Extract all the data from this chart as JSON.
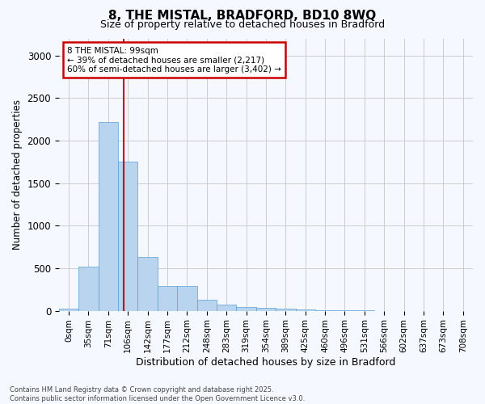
{
  "title_line1": "8, THE MISTAL, BRADFORD, BD10 8WQ",
  "title_line2": "Size of property relative to detached houses in Bradford",
  "xlabel": "Distribution of detached houses by size in Bradford",
  "ylabel": "Number of detached properties",
  "bar_color": "#b8d4ee",
  "bar_edge_color": "#5a9fd4",
  "annotation_box_color": "#cc0000",
  "annotation_line1": "8 THE MISTAL: 99sqm",
  "annotation_line2": "← 39% of detached houses are smaller (2,217)",
  "annotation_line3": "60% of semi-detached houses are larger (3,402) →",
  "vline_color": "#cc0000",
  "vline_x_index": 2.857,
  "categories": [
    "0sqm",
    "35sqm",
    "71sqm",
    "106sqm",
    "142sqm",
    "177sqm",
    "212sqm",
    "248sqm",
    "283sqm",
    "319sqm",
    "354sqm",
    "389sqm",
    "425sqm",
    "460sqm",
    "496sqm",
    "531sqm",
    "566sqm",
    "602sqm",
    "637sqm",
    "673sqm",
    "708sqm"
  ],
  "bin_edges": [
    0,
    35,
    71,
    106,
    142,
    177,
    212,
    248,
    283,
    319,
    354,
    389,
    425,
    460,
    496,
    531,
    566,
    602,
    637,
    673,
    708
  ],
  "bin_width": 35,
  "values": [
    25,
    520,
    2220,
    1750,
    630,
    290,
    290,
    130,
    75,
    40,
    30,
    25,
    15,
    10,
    5,
    5,
    0,
    0,
    0,
    0,
    0
  ],
  "ylim": [
    0,
    3200
  ],
  "yticks": [
    0,
    500,
    1000,
    1500,
    2000,
    2500,
    3000
  ],
  "footnote1": "Contains HM Land Registry data © Crown copyright and database right 2025.",
  "footnote2": "Contains public sector information licensed under the Open Government Licence v3.0.",
  "background_color": "#f5f8ff",
  "grid_color": "#cccccc"
}
